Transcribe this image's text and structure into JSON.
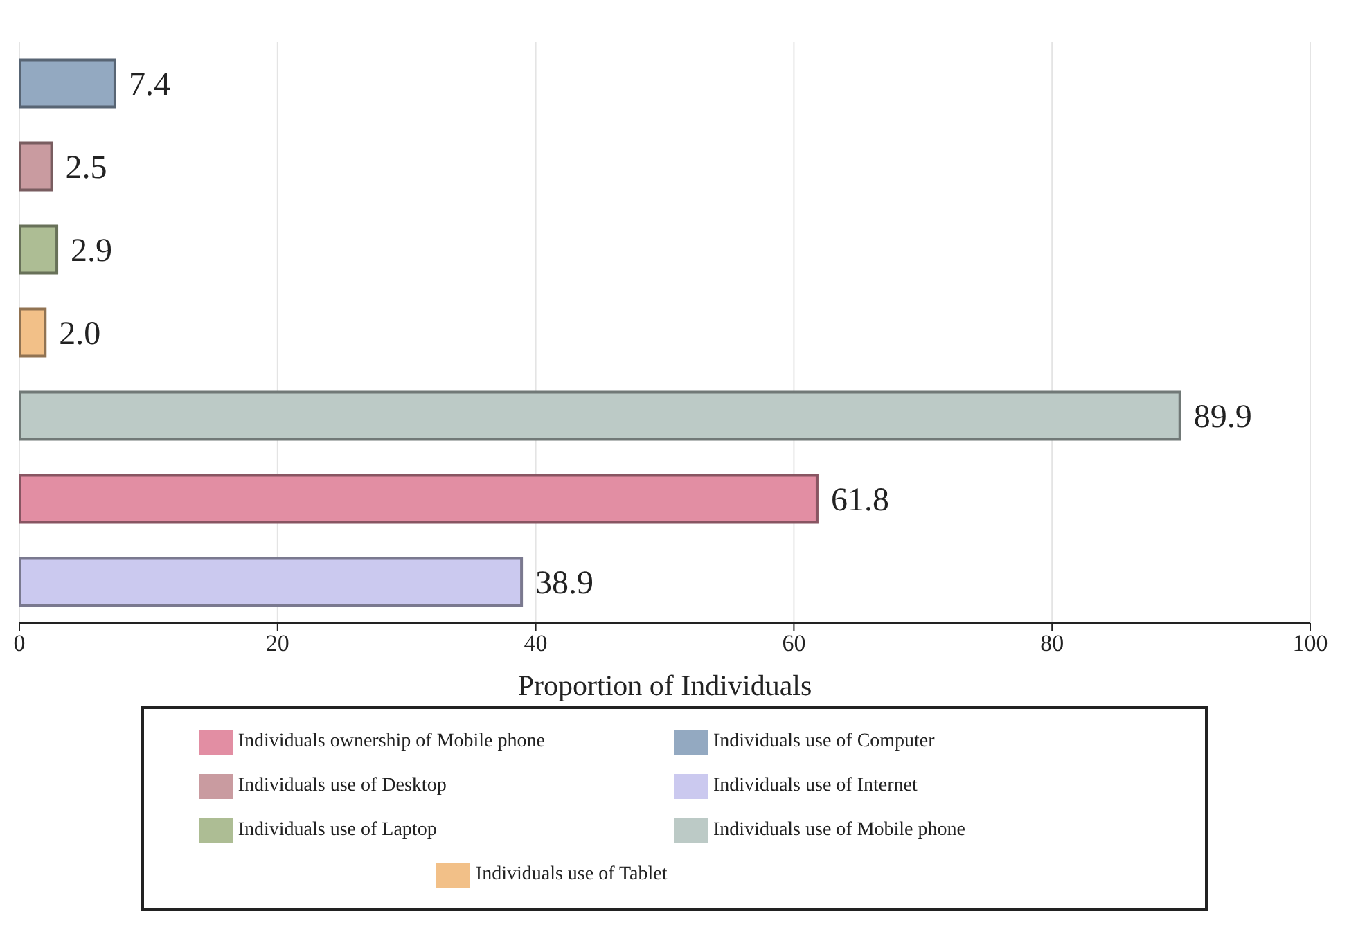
{
  "chart_data": {
    "type": "bar",
    "orientation": "horizontal",
    "xlabel": "Proportion of Individuals",
    "categories": [
      null,
      null,
      null,
      null,
      null,
      null,
      null
    ],
    "series": [
      {
        "name": "Individuals use of Computer",
        "color": "#93a9c1",
        "values": [
          7.4,
          null,
          null,
          null,
          null,
          null,
          null
        ],
        "value_labels": [
          "7.4",
          null,
          null,
          null,
          null,
          null,
          null
        ]
      },
      {
        "name": "Individuals use of Desktop",
        "color": "#c99ba0",
        "values": [
          null,
          2.5,
          null,
          null,
          null,
          null,
          null
        ],
        "value_labels": [
          null,
          "2.5",
          null,
          null,
          null,
          null,
          null
        ]
      },
      {
        "name": "Individuals use of Laptop",
        "color": "#adbd94",
        "values": [
          null,
          null,
          2.9,
          null,
          null,
          null,
          null
        ],
        "value_labels": [
          null,
          null,
          "2.9",
          null,
          null,
          null,
          null
        ]
      },
      {
        "name": "Individuals use of Tablet",
        "color": "#f2c088",
        "values": [
          null,
          null,
          null,
          2.0,
          null,
          null,
          null
        ],
        "value_labels": [
          null,
          null,
          null,
          "2.0",
          null,
          null,
          null
        ]
      },
      {
        "name": "Individuals use of Mobile phone",
        "color": "#bccac6",
        "values": [
          null,
          null,
          null,
          null,
          89.9,
          null,
          null
        ],
        "value_labels": [
          null,
          null,
          null,
          null,
          "89.9",
          null,
          null
        ]
      },
      {
        "name": "Individuals ownership of Mobile phone",
        "color": "#e28ea3",
        "values": [
          null,
          null,
          null,
          null,
          null,
          61.8,
          null
        ],
        "value_labels": [
          null,
          null,
          null,
          null,
          null,
          "61.8",
          null
        ]
      },
      {
        "name": "Individuals use of Internet",
        "color": "#cbc9ef",
        "values": [
          null,
          null,
          null,
          null,
          null,
          null,
          38.9
        ],
        "value_labels": [
          null,
          null,
          null,
          null,
          null,
          null,
          "38.9"
        ]
      }
    ],
    "xlim": [
      0,
      100
    ],
    "xticks": [
      0,
      20,
      40,
      60,
      80,
      100
    ],
    "grid": "x",
    "legend": "bottom"
  }
}
